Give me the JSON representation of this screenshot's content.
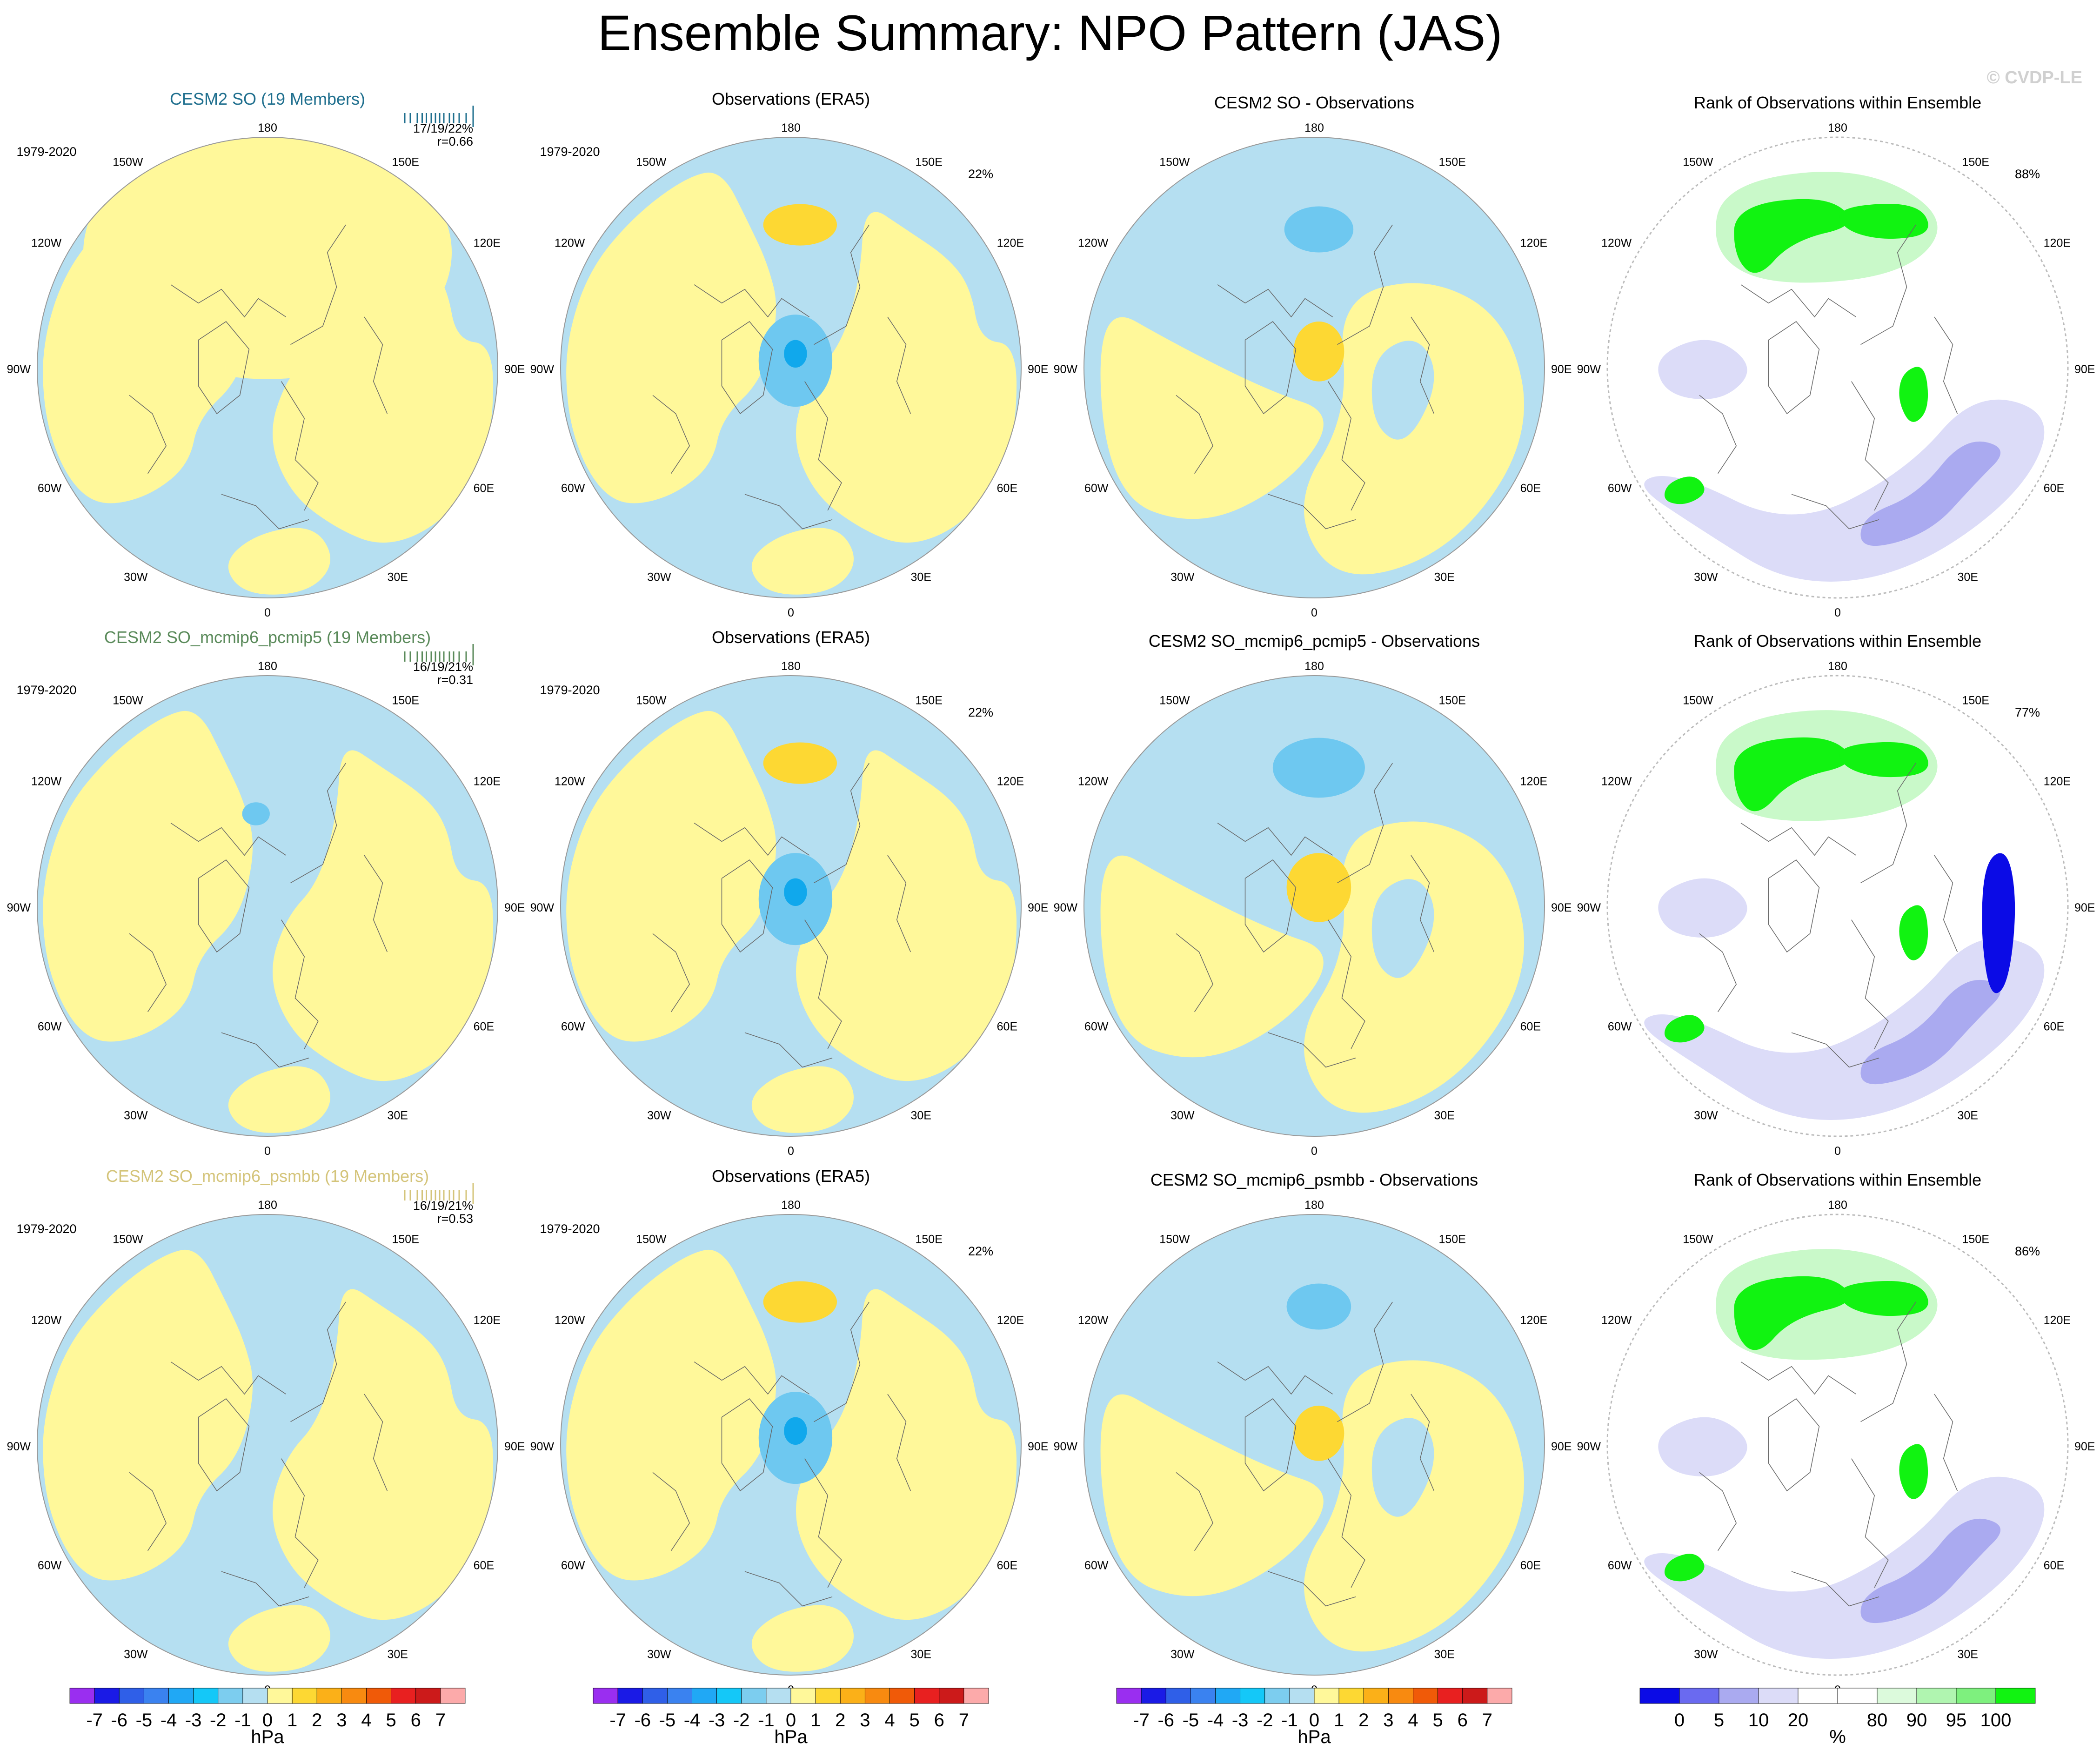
{
  "title": "Ensemble Summary: NPO Pattern (JAS)",
  "watermark": "© CVDP-LE",
  "colors": {
    "ocean_blue": "#b5dff1",
    "land_yellow": "#fff89a",
    "neg_mid": "#6ec8f0",
    "neg_core": "#10a8ec",
    "pos_mid": "#fdd833",
    "green_bright": "#11f311",
    "green_light": "#c9f9c9",
    "violet_light": "#dcdcf8",
    "violet_mid": "#aaaaf0",
    "blue_deep": "#0b0be6",
    "title_blue": "#1f6f8e",
    "title_green": "#5a8a5a",
    "title_khaki": "#d4c47a"
  },
  "longitude_labels": [
    "180",
    "150E",
    "120E",
    "90E",
    "60E",
    "30E",
    "0",
    "30W",
    "60W",
    "90W",
    "120W",
    "150W"
  ],
  "chart_data": {
    "type": "heatmap",
    "description": "Polar-stereographic maps of the North Pacific Oscillation sea-level pressure pattern, July-September, 1979-2020",
    "panels": [
      {
        "row": 0,
        "col": 0,
        "kind": "model",
        "title": "CESM2 SO (19 Members)",
        "title_color": "#1f6f8e",
        "period": "1979-2020",
        "stats": "17/19/22%",
        "corr": "r=0.66",
        "pct": "",
        "blobs": [
          {
            "kind": "land",
            "cx": 0,
            "cy": -0.5,
            "rx": 0.8,
            "ry": 0.55,
            "rot": 0
          }
        ]
      },
      {
        "row": 0,
        "col": 1,
        "kind": "obs",
        "title": "Observations (ERA5)",
        "period": "1979-2020",
        "stats": "",
        "corr": "",
        "pct": "22%",
        "blobs": [
          {
            "kind": "pos",
            "cx": 0.04,
            "cy": -0.62,
            "rx": 0.16,
            "ry": 0.09,
            "rot": 0
          },
          {
            "kind": "neg",
            "cx": 0.02,
            "cy": -0.03,
            "rx": 0.16,
            "ry": 0.2,
            "rot": 0
          },
          {
            "kind": "core",
            "cx": 0.02,
            "cy": -0.06,
            "rx": 0.05,
            "ry": 0.06,
            "rot": 0
          }
        ]
      },
      {
        "row": 0,
        "col": 2,
        "kind": "diff",
        "title": "CESM2 SO - Observations",
        "period": "",
        "stats": "",
        "corr": "",
        "pct": "",
        "blobs": [
          {
            "kind": "neg",
            "cx": 0.02,
            "cy": -0.6,
            "rx": 0.15,
            "ry": 0.1,
            "rot": 0
          },
          {
            "kind": "pos",
            "cx": 0.02,
            "cy": -0.07,
            "rx": 0.11,
            "ry": 0.13,
            "rot": 0
          }
        ]
      },
      {
        "row": 0,
        "col": 3,
        "kind": "rank",
        "title": "Rank of Observations within Ensemble",
        "period": "",
        "stats": "",
        "corr": "",
        "pct": "88%",
        "blobs": []
      },
      {
        "row": 1,
        "col": 0,
        "kind": "model",
        "title": "CESM2 SO_mcmip6_pcmip5 (19 Members)",
        "title_color": "#5a8a5a",
        "period": "1979-2020",
        "stats": "16/19/21%",
        "corr": "r=0.31",
        "pct": "",
        "blobs": [
          {
            "kind": "neg",
            "cx": -0.05,
            "cy": -0.4,
            "rx": 0.06,
            "ry": 0.05,
            "rot": 0
          }
        ]
      },
      {
        "row": 1,
        "col": 1,
        "kind": "obs",
        "title": "Observations (ERA5)",
        "period": "1979-2020",
        "stats": "",
        "corr": "",
        "pct": "22%",
        "blobs": [
          {
            "kind": "pos",
            "cx": 0.04,
            "cy": -0.62,
            "rx": 0.16,
            "ry": 0.09,
            "rot": 0
          },
          {
            "kind": "neg",
            "cx": 0.02,
            "cy": -0.03,
            "rx": 0.16,
            "ry": 0.2,
            "rot": 0
          },
          {
            "kind": "core",
            "cx": 0.02,
            "cy": -0.06,
            "rx": 0.05,
            "ry": 0.06,
            "rot": 0
          }
        ]
      },
      {
        "row": 1,
        "col": 2,
        "kind": "diff",
        "title": "CESM2 SO_mcmip6_pcmip5 - Observations",
        "period": "",
        "stats": "",
        "corr": "",
        "pct": "",
        "blobs": [
          {
            "kind": "neg",
            "cx": 0.02,
            "cy": -0.6,
            "rx": 0.2,
            "ry": 0.13,
            "rot": 0
          },
          {
            "kind": "pos",
            "cx": 0.02,
            "cy": -0.08,
            "rx": 0.14,
            "ry": 0.15,
            "rot": 0
          }
        ]
      },
      {
        "row": 1,
        "col": 3,
        "kind": "rank",
        "title": "Rank of Observations within Ensemble",
        "period": "",
        "stats": "",
        "corr": "",
        "pct": "77%",
        "blobs": []
      },
      {
        "row": 2,
        "col": 0,
        "kind": "model",
        "title": "CESM2 SO_mcmip6_psmbb (19 Members)",
        "title_color": "#d4c47a",
        "period": "1979-2020",
        "stats": "16/19/21%",
        "corr": "r=0.53",
        "pct": "",
        "blobs": []
      },
      {
        "row": 2,
        "col": 1,
        "kind": "obs",
        "title": "Observations (ERA5)",
        "period": "1979-2020",
        "stats": "",
        "corr": "",
        "pct": "22%",
        "blobs": [
          {
            "kind": "pos",
            "cx": 0.04,
            "cy": -0.62,
            "rx": 0.16,
            "ry": 0.09,
            "rot": 0
          },
          {
            "kind": "neg",
            "cx": 0.02,
            "cy": -0.03,
            "rx": 0.16,
            "ry": 0.2,
            "rot": 0
          },
          {
            "kind": "core",
            "cx": 0.02,
            "cy": -0.06,
            "rx": 0.05,
            "ry": 0.06,
            "rot": 0
          }
        ]
      },
      {
        "row": 2,
        "col": 2,
        "kind": "diff",
        "title": "CESM2 SO_mcmip6_psmbb - Observations",
        "period": "",
        "stats": "",
        "corr": "",
        "pct": "",
        "blobs": [
          {
            "kind": "neg",
            "cx": 0.02,
            "cy": -0.6,
            "rx": 0.14,
            "ry": 0.1,
            "rot": 0
          },
          {
            "kind": "pos",
            "cx": 0.02,
            "cy": -0.05,
            "rx": 0.11,
            "ry": 0.12,
            "rot": 0
          }
        ]
      },
      {
        "row": 2,
        "col": 3,
        "kind": "rank",
        "title": "Rank of Observations within Ensemble",
        "period": "",
        "stats": "",
        "corr": "",
        "pct": "86%",
        "blobs": []
      }
    ],
    "colorbars": [
      {
        "col": 0,
        "unit": "hPa",
        "labels": [
          "-7",
          "-6",
          "-5",
          "-4",
          "-3",
          "-2",
          "-1",
          "0",
          "1",
          "2",
          "3",
          "4",
          "5",
          "6",
          "7"
        ],
        "colors": [
          "#9a2ef0",
          "#1a1ae6",
          "#2f5fe8",
          "#3a82f0",
          "#20a8f5",
          "#14c8f8",
          "#7ccdef",
          "#b5dff1",
          "#fff89a",
          "#fdd833",
          "#fbb018",
          "#f88a10",
          "#f05a08",
          "#e82020",
          "#cc1a1a",
          "#fcaaaa"
        ]
      },
      {
        "col": 1,
        "unit": "hPa",
        "labels": [
          "-7",
          "-6",
          "-5",
          "-4",
          "-3",
          "-2",
          "-1",
          "0",
          "1",
          "2",
          "3",
          "4",
          "5",
          "6",
          "7"
        ],
        "colors": [
          "#9a2ef0",
          "#1a1ae6",
          "#2f5fe8",
          "#3a82f0",
          "#20a8f5",
          "#14c8f8",
          "#7ccdef",
          "#b5dff1",
          "#fff89a",
          "#fdd833",
          "#fbb018",
          "#f88a10",
          "#f05a08",
          "#e82020",
          "#cc1a1a",
          "#fcaaaa"
        ]
      },
      {
        "col": 2,
        "unit": "hPa",
        "labels": [
          "-7",
          "-6",
          "-5",
          "-4",
          "-3",
          "-2",
          "-1",
          "0",
          "1",
          "2",
          "3",
          "4",
          "5",
          "6",
          "7"
        ],
        "colors": [
          "#9a2ef0",
          "#1a1ae6",
          "#2f5fe8",
          "#3a82f0",
          "#20a8f5",
          "#14c8f8",
          "#7ccdef",
          "#b5dff1",
          "#fff89a",
          "#fdd833",
          "#fbb018",
          "#f88a10",
          "#f05a08",
          "#e82020",
          "#cc1a1a",
          "#fcaaaa"
        ]
      },
      {
        "col": 3,
        "unit": "%",
        "labels": [
          "0",
          "5",
          "10",
          "20",
          "80",
          "90",
          "95",
          "100"
        ],
        "colors": [
          "#0b0be6",
          "#6a6af0",
          "#aaaaf0",
          "#dcdcf8",
          "#ffffff",
          "#ffffff",
          "#dcfadc",
          "#b0f5b0",
          "#7ef07e",
          "#11f311"
        ],
        "tick_index": [
          1,
          2,
          3,
          4,
          6,
          7,
          8,
          9
        ]
      }
    ]
  }
}
